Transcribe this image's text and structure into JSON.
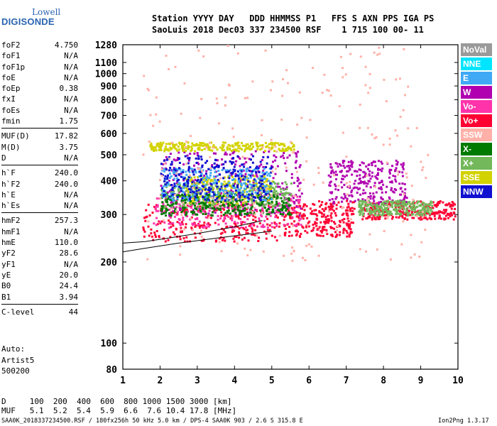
{
  "logo": {
    "line1": "Lowell",
    "line2": "DIGISONDE"
  },
  "header": {
    "labels": "Station YYYY DAY   DDD HHMMSS P1   FFS S AXN PPS IGA PS",
    "values": "SaoLuis 2018 Dec03 337 234500 RSF    1 715 100 00- 11"
  },
  "params": [
    {
      "label": "foF2",
      "value": "4.750"
    },
    {
      "label": "foF1",
      "value": "N/A"
    },
    {
      "label": "foF1p",
      "value": "N/A"
    },
    {
      "label": "foE",
      "value": "N/A"
    },
    {
      "label": "foEp",
      "value": "0.38"
    },
    {
      "label": "fxI",
      "value": "N/A"
    },
    {
      "label": "foEs",
      "value": "N/A"
    },
    {
      "label": "fmin",
      "value": "1.75"
    },
    {
      "label": "MUF(D)",
      "value": "17.82"
    },
    {
      "label": "M(D)",
      "value": "3.75"
    },
    {
      "label": "D",
      "value": "N/A"
    },
    {
      "label": "h`F",
      "value": "240.0"
    },
    {
      "label": "h`F2",
      "value": "240.0"
    },
    {
      "label": "h`E",
      "value": "N/A"
    },
    {
      "label": "h`Es",
      "value": "N/A"
    },
    {
      "label": "hmF2",
      "value": "257.3"
    },
    {
      "label": "hmF1",
      "value": "N/A"
    },
    {
      "label": "hmE",
      "value": "110.0"
    },
    {
      "label": "yF2",
      "value": "28.6"
    },
    {
      "label": "yF1",
      "value": "N/A"
    },
    {
      "label": "yE",
      "value": "20.0"
    },
    {
      "label": "B0",
      "value": "24.4"
    },
    {
      "label": "B1",
      "value": "3.94"
    },
    {
      "label": "C-level",
      "value": "44"
    }
  ],
  "auto": {
    "line1": "Auto:",
    "line2": "Artist5",
    "line3": "500200"
  },
  "legend": [
    {
      "label": "NoVal",
      "color": "#9a9a9a"
    },
    {
      "label": "NNE",
      "color": "#00e5ff"
    },
    {
      "label": "E",
      "color": "#3fa9f5"
    },
    {
      "label": "W",
      "color": "#b000b0"
    },
    {
      "label": "Vo-",
      "color": "#ff33aa"
    },
    {
      "label": "Vo+",
      "color": "#ff0033"
    },
    {
      "label": "SSW",
      "color": "#ffb0a8"
    },
    {
      "label": "X-",
      "color": "#007a00"
    },
    {
      "label": "X+",
      "color": "#73b85a"
    },
    {
      "label": "SSE",
      "color": "#d2d200"
    },
    {
      "label": "NNW",
      "color": "#1010d0"
    }
  ],
  "distance_table": {
    "d_row": "D     100  200  400  600  800 1000 1500 3000 [km]",
    "muf_row": "MUF   5.1  5.2  5.4  5.9  6.6  7.6 10.4 17.8 [MHz]"
  },
  "footer": {
    "text": "SAA0K_2018337234500.RSF / 180fx256h 50 kHz 5.0 km / DPS-4 SAA0K 903 / 2.6 S 315.8 E",
    "version": "Ion2Png 1.3.17"
  },
  "chart_data": {
    "type": "scatter",
    "title": "",
    "xlabel": "",
    "ylabel": "",
    "xlim": [
      1,
      10
    ],
    "ylim": [
      80,
      1280
    ],
    "y_scale": "log",
    "x_ticks": [
      1,
      2,
      3,
      4,
      5,
      6,
      7,
      8,
      9,
      10
    ],
    "y_ticks": [
      80,
      100,
      200,
      300,
      400,
      500,
      600,
      700,
      800,
      900,
      1000,
      1100,
      1280
    ],
    "series": [
      {
        "color": "#ff0033",
        "region": {
          "x": [
            1.5,
            5.2
          ],
          "y": [
            240,
            330
          ]
        }
      },
      {
        "color": "#ff0033",
        "region": {
          "x": [
            5.3,
            7.2
          ],
          "y": [
            250,
            340
          ]
        }
      },
      {
        "color": "#ff0033",
        "region": {
          "x": [
            7.4,
            9.9
          ],
          "y": [
            290,
            340
          ]
        }
      },
      {
        "color": "#ff33aa",
        "region": {
          "x": [
            1.8,
            5.8
          ],
          "y": [
            270,
            360
          ]
        }
      },
      {
        "color": "#b000b0",
        "region": {
          "x": [
            2.0,
            5.8
          ],
          "y": [
            300,
            520
          ]
        }
      },
      {
        "color": "#b000b0",
        "region": {
          "x": [
            6.5,
            8.6
          ],
          "y": [
            330,
            480
          ]
        }
      },
      {
        "color": "#d2d200",
        "region": {
          "x": [
            2.5,
            5.0
          ],
          "y": [
            330,
            420
          ]
        }
      },
      {
        "color": "#d2d200",
        "region": {
          "x": [
            1.7,
            5.6
          ],
          "y": [
            520,
            560
          ]
        }
      },
      {
        "color": "#73b85a",
        "region": {
          "x": [
            2.0,
            5.5
          ],
          "y": [
            320,
            400
          ]
        }
      },
      {
        "color": "#73b85a",
        "region": {
          "x": [
            7.3,
            9.3
          ],
          "y": [
            300,
            340
          ]
        }
      },
      {
        "color": "#007a00",
        "region": {
          "x": [
            2.0,
            5.5
          ],
          "y": [
            300,
            360
          ]
        }
      },
      {
        "color": "#3fa9f5",
        "region": {
          "x": [
            2.0,
            5.0
          ],
          "y": [
            340,
            450
          ]
        }
      },
      {
        "color": "#1010d0",
        "region": {
          "x": [
            2.0,
            5.0
          ],
          "y": [
            340,
            500
          ]
        }
      },
      {
        "color": "#ffb0a8",
        "region": {
          "x": [
            1.5,
            9.2
          ],
          "y": [
            200,
            1280
          ]
        }
      }
    ],
    "traces": [
      {
        "name": "virtual-height-trace",
        "x": [
          1,
          1.6,
          2.5,
          3.5,
          4.5,
          5.0
        ],
        "y": [
          218,
          225,
          235,
          245,
          255,
          260
        ]
      },
      {
        "name": "upper-trace",
        "x": [
          1,
          1.6,
          2.2,
          3.0,
          4.0,
          4.75
        ],
        "y": [
          235,
          238,
          245,
          255,
          270,
          285
        ]
      }
    ]
  }
}
